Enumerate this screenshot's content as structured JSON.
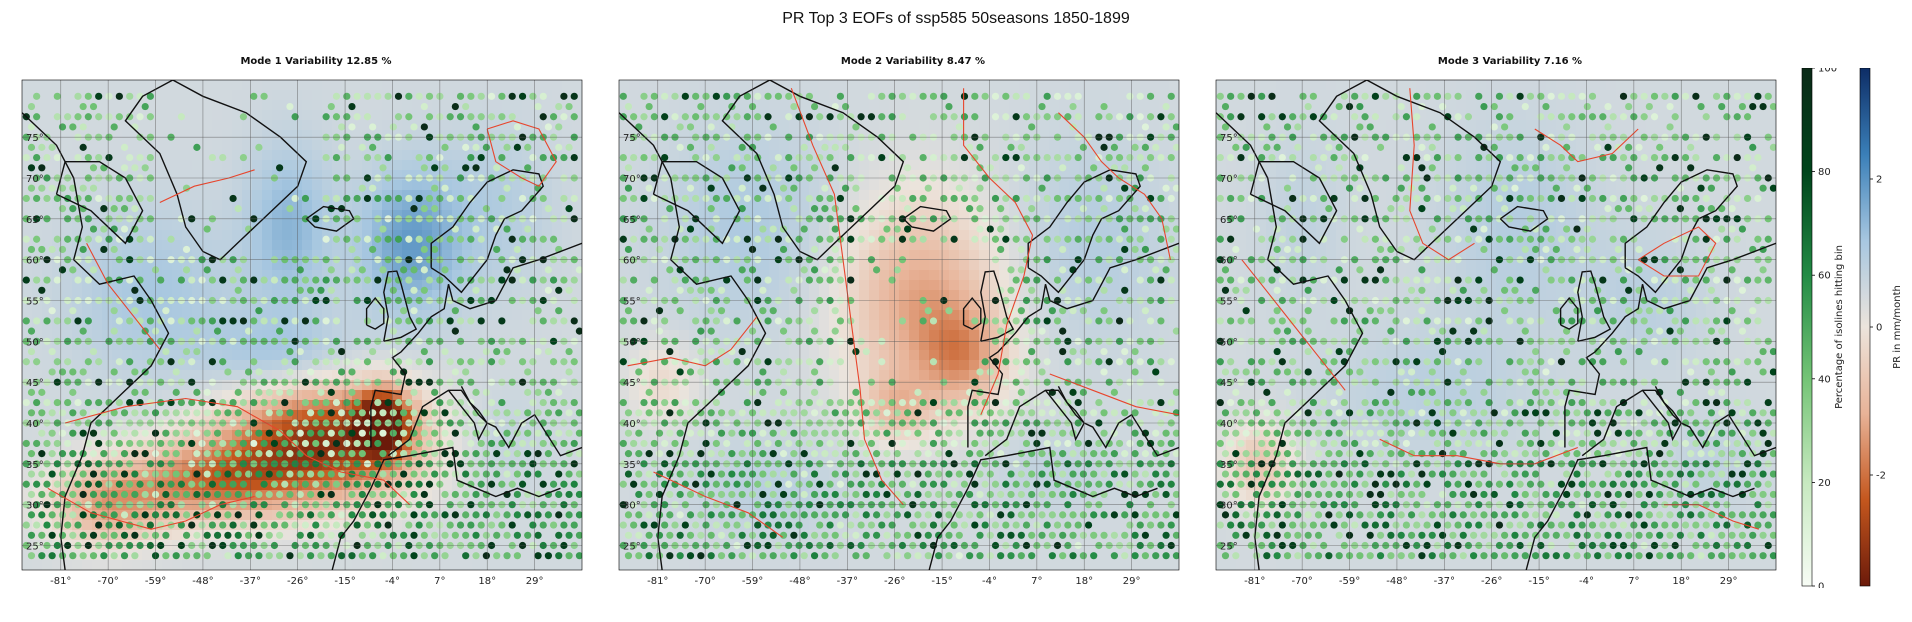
{
  "figure": {
    "title": "PR Top 3 EOFs of ssp585 50seasons 1850-1899"
  },
  "panels": [
    {
      "title": "Mode 1 Variability 12.85 %",
      "mode": 1
    },
    {
      "title": "Mode 2 Variability 8.47 %",
      "mode": 2
    },
    {
      "title": "Mode 3 Variability 7.16 %",
      "mode": 3
    }
  ],
  "map": {
    "lat_ticks": [
      "75°",
      "70°",
      "65°",
      "60°",
      "55°",
      "50°",
      "45°",
      "40°",
      "35°",
      "30°",
      "25°"
    ],
    "lat_values": [
      75,
      70,
      65,
      60,
      55,
      50,
      45,
      40,
      35,
      30,
      25
    ],
    "lon_ticks": [
      "-81°",
      "-70°",
      "-59°",
      "-48°",
      "-37°",
      "-26°",
      "-15°",
      "-4°",
      "7°",
      "18°",
      "29°"
    ],
    "lon_values": [
      -81,
      -70,
      -59,
      -48,
      -37,
      -26,
      -15,
      -4,
      7,
      18,
      29
    ],
    "lon_range": [
      -90,
      40
    ],
    "lat_range": [
      22,
      82
    ],
    "grid": true,
    "colors": {
      "coast": "#111111",
      "zero_contour": "#e8452c"
    }
  },
  "colorbars": {
    "percentage": {
      "label": "Percentage of isolines hitting bin",
      "ticks": [
        "100",
        "80",
        "60",
        "40",
        "20",
        "0"
      ],
      "tick_values": [
        100,
        80,
        60,
        40,
        20,
        0
      ],
      "colormap": "Greens",
      "colors": [
        "#f7fcf5",
        "#c7e9c0",
        "#74c476",
        "#238b45",
        "#00441b",
        "#0b2a18"
      ]
    },
    "pr": {
      "label": "PR in mm/month",
      "ticks": [
        "2",
        "0",
        "-2"
      ],
      "tick_values": [
        2,
        0,
        -2
      ],
      "range": [
        -3.5,
        3.5
      ],
      "colormap": "RdBu-diverging",
      "colors": [
        "#6b1a0a",
        "#c4571e",
        "#e8b398",
        "#ece4dc",
        "#a7c7e0",
        "#3a7fb8",
        "#0d2d66"
      ]
    }
  }
}
